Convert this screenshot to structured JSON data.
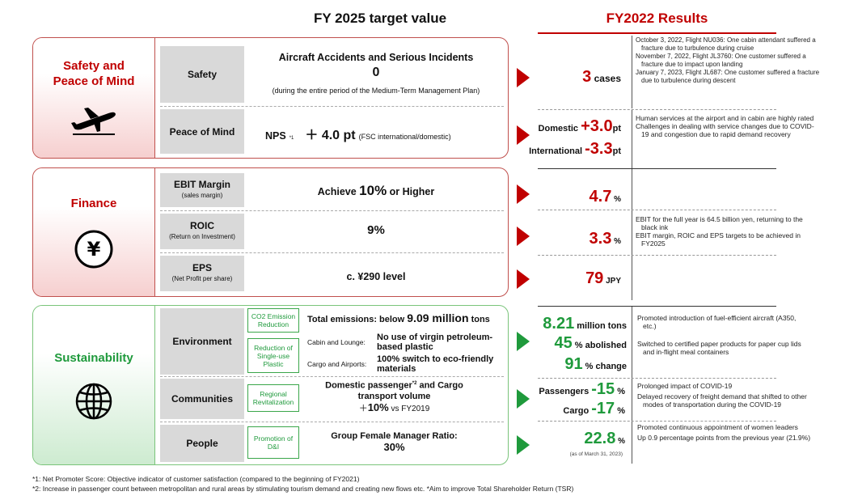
{
  "headers": {
    "target": "FY 2025 target value",
    "results": "FY2022 Results"
  },
  "safety": {
    "title_line1": "Safety and",
    "title_line2": "Peace of Mind",
    "icon": "airplane-icon",
    "rows": [
      {
        "label": "Safety",
        "target_title": "Aircraft Accidents and Serious Incidents",
        "target_value": "0",
        "target_note": "(during the entire period of the Medium-Term Management Plan)"
      },
      {
        "label": "Peace of Mind",
        "target_prefix": "NPS",
        "target_sup": "*1",
        "target_value": "＋ 4.0 pt",
        "target_note": "(FSC international/domestic)"
      }
    ]
  },
  "finance": {
    "title": "Finance",
    "icon": "yen-icon",
    "rows": [
      {
        "label": "EBIT Margin",
        "sublabel": "(sales margin)",
        "target_pre": "Achieve ",
        "target_big": "10%",
        "target_post": " or Higher"
      },
      {
        "label": "ROIC",
        "sublabel": "(Return on Investment)",
        "target": "9%"
      },
      {
        "label": "EPS",
        "sublabel": "(Net Profit per share)",
        "target": "c. ¥290 level"
      }
    ]
  },
  "sustainability": {
    "title": "Sustainability",
    "icon": "globe-icon",
    "environment": {
      "label": "Environment",
      "tag1": "CO2 Emission Reduction",
      "t1_pre": "Total emissions: below ",
      "t1_big": "9.09 million",
      "t1_post": " tons",
      "tag2": "Reduction of Single-use Plastic",
      "t2_lbl": "Cabin and Lounge:",
      "t2_val": "No use of virgin petroleum-based plastic",
      "t3_lbl": "Cargo and Airports:",
      "t3_val": "100% switch to eco-friendly materials"
    },
    "communities": {
      "label": "Communities",
      "tag": "Regional Revitalization",
      "t_line1": "Domestic passenger",
      "t_sup": "*2",
      "t_line1b": " and Cargo",
      "t_line2": "transport volume",
      "t_line3_pre": "＋",
      "t_line3_big": "10%",
      "t_line3_post": " vs FY2019"
    },
    "people": {
      "label": "People",
      "tag": "Promotion of D&I",
      "t_line1": "Group Female Manager Ratio:",
      "t_line2": "30%"
    }
  },
  "results": {
    "safety": {
      "value": "3",
      "unit": " cases",
      "notes": [
        "October 3, 2022, Flight NU036: One cabin attendant suffered a fracture due to turbulence during cruise",
        "November 7, 2022, Flight JL3760: One customer suffered a fracture due to impact upon landing",
        "January 7, 2023, Flight JL687: One customer suffered a fracture due to turbulence during descent"
      ]
    },
    "peace": {
      "dom_label": "Domestic",
      "dom_value": "+3.0",
      "dom_unit": "pt",
      "int_label": "International",
      "int_value": "-3.3",
      "int_unit": "pt",
      "notes": [
        "Human services at the airport and in cabin are highly rated",
        "Challenges in dealing with service changes due to COVID-19 and congestion due to rapid demand recovery"
      ]
    },
    "ebit": {
      "value": "4.7",
      "unit": " %"
    },
    "roic": {
      "value": "3.3",
      "unit": " %"
    },
    "eps": {
      "value": "79",
      "unit": " JPY"
    },
    "finance_notes": [
      "EBIT for the full year is 64.5 billion yen, returning to the black ink",
      "EBIT margin, ROIC and EPS targets to be achieved in FY2025"
    ],
    "env": {
      "v1": "8.21",
      "u1": " million tons",
      "v2": "45",
      "u2": " % abolished",
      "v3": "91",
      "u3": " % change",
      "notes": [
        "Promoted introduction of fuel-efficient aircraft (A350, etc.)",
        "Switched to certified paper products for paper cup lids and in-flight meal containers"
      ]
    },
    "comm": {
      "p_label": "Passengers",
      "p_value": "-15",
      "p_unit": " %",
      "c_label": "Cargo",
      "c_value": "-17",
      "c_unit": " %",
      "notes": [
        "Prolonged impact of COVID-19",
        "Delayed recovery of freight demand that shifted to other modes of transportation during the COVID-19"
      ]
    },
    "people": {
      "value": "22.8",
      "unit": " %",
      "asof": "(as of March 31, 2023)",
      "notes": [
        "Promoted continuous appointment of women leaders",
        "Up 0.9 percentage points from the previous year (21.9%)"
      ]
    }
  },
  "footnotes": [
    "*1: Net Promoter Score: Objective indicator of customer satisfaction (compared to the beginning of FY2021)",
    "*2: Increase in passenger count between metropolitan and rural areas by stimulating tourism demand and creating new flows etc.   *Aim to improve Total Shareholder Return (TSR)"
  ]
}
